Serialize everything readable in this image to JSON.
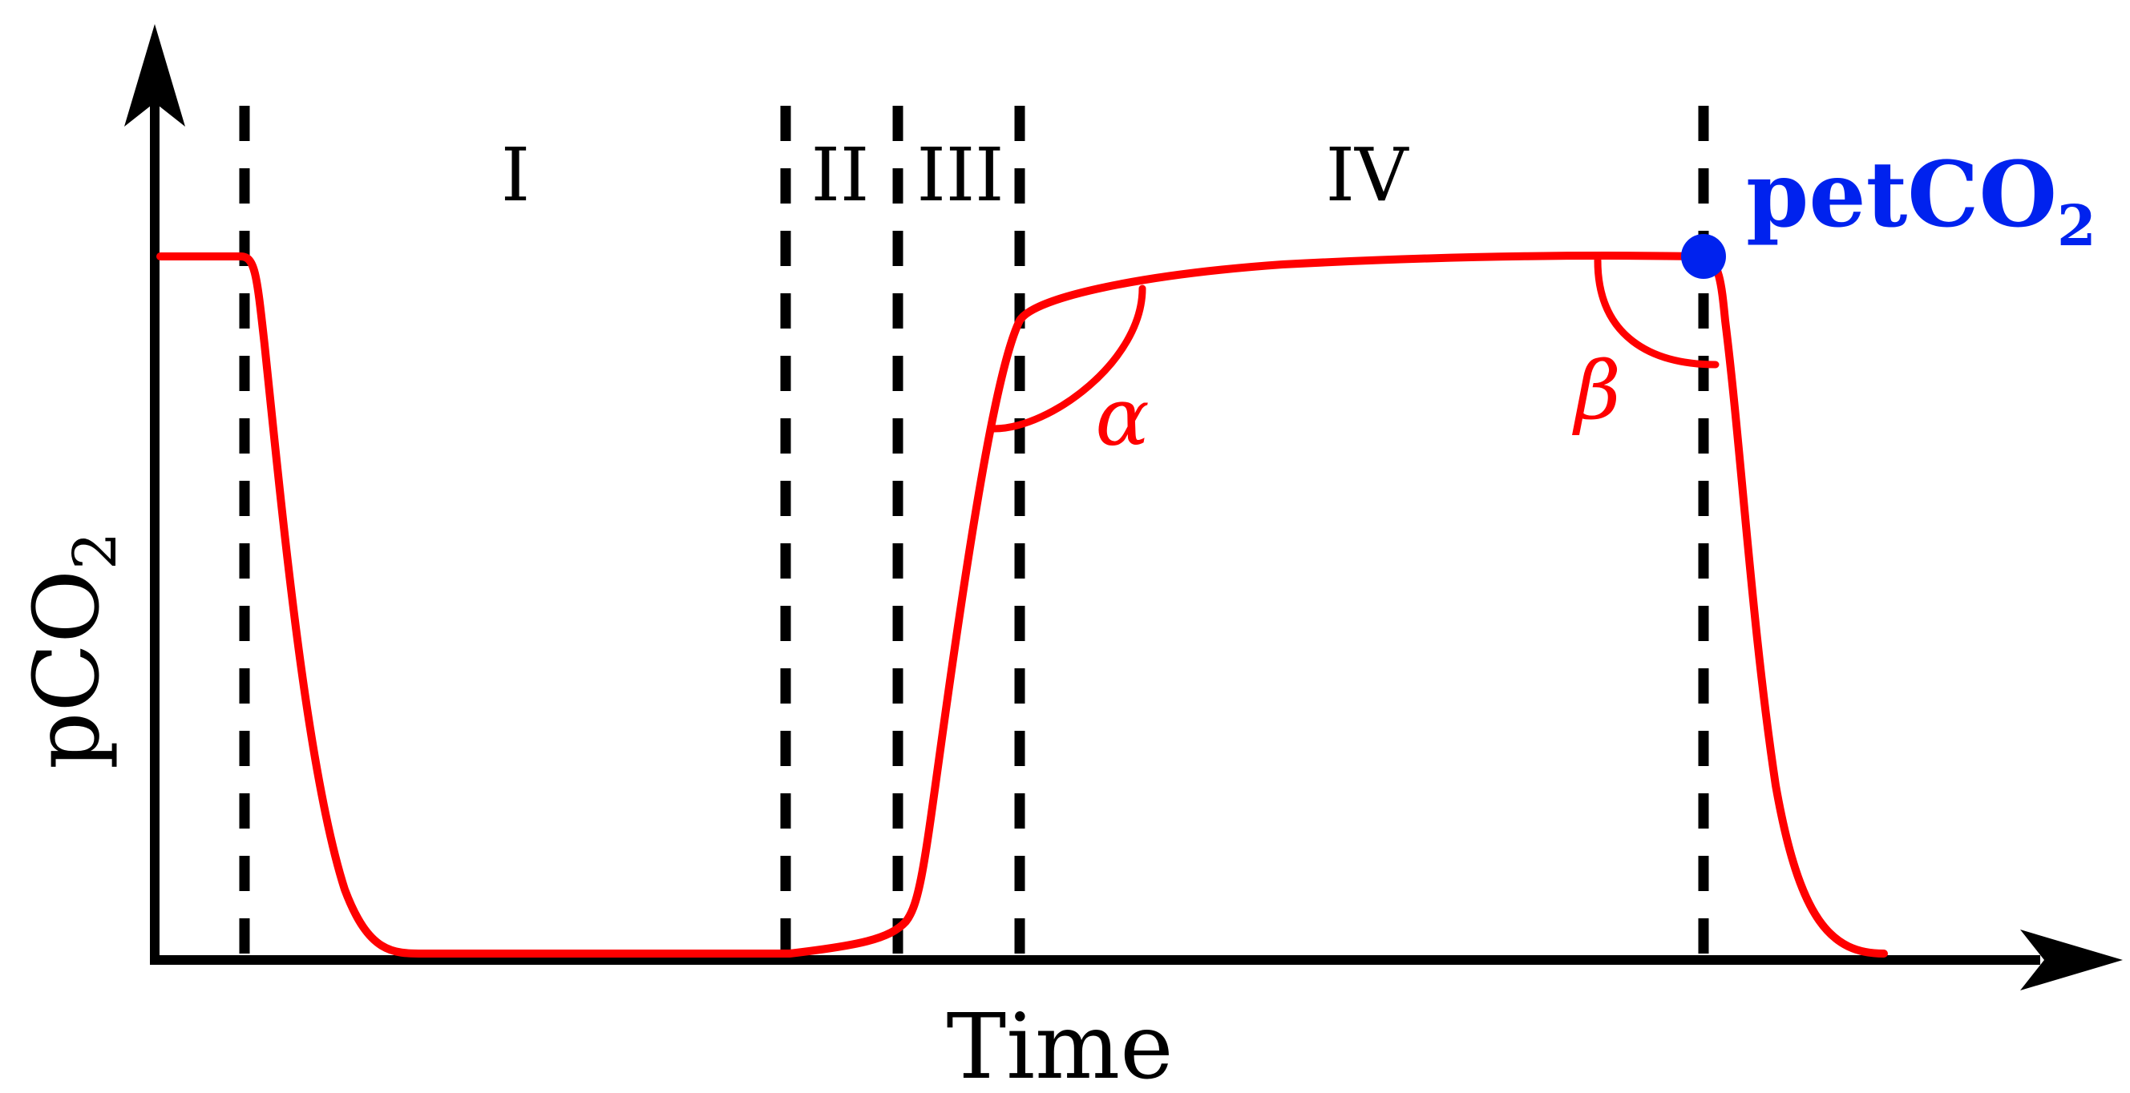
{
  "colors": {
    "axis": "#000000",
    "curve": "#ff0000",
    "marker": "#0022ee"
  },
  "axes": {
    "x_title": "Time",
    "y_title": "pCO",
    "y_title_sub": "2"
  },
  "phases": [
    "I",
    "II",
    "III",
    "IV"
  ],
  "angles": {
    "alpha": "α",
    "beta": "β"
  },
  "end_tidal": {
    "label_main": "petCO",
    "label_sub": "2"
  }
}
